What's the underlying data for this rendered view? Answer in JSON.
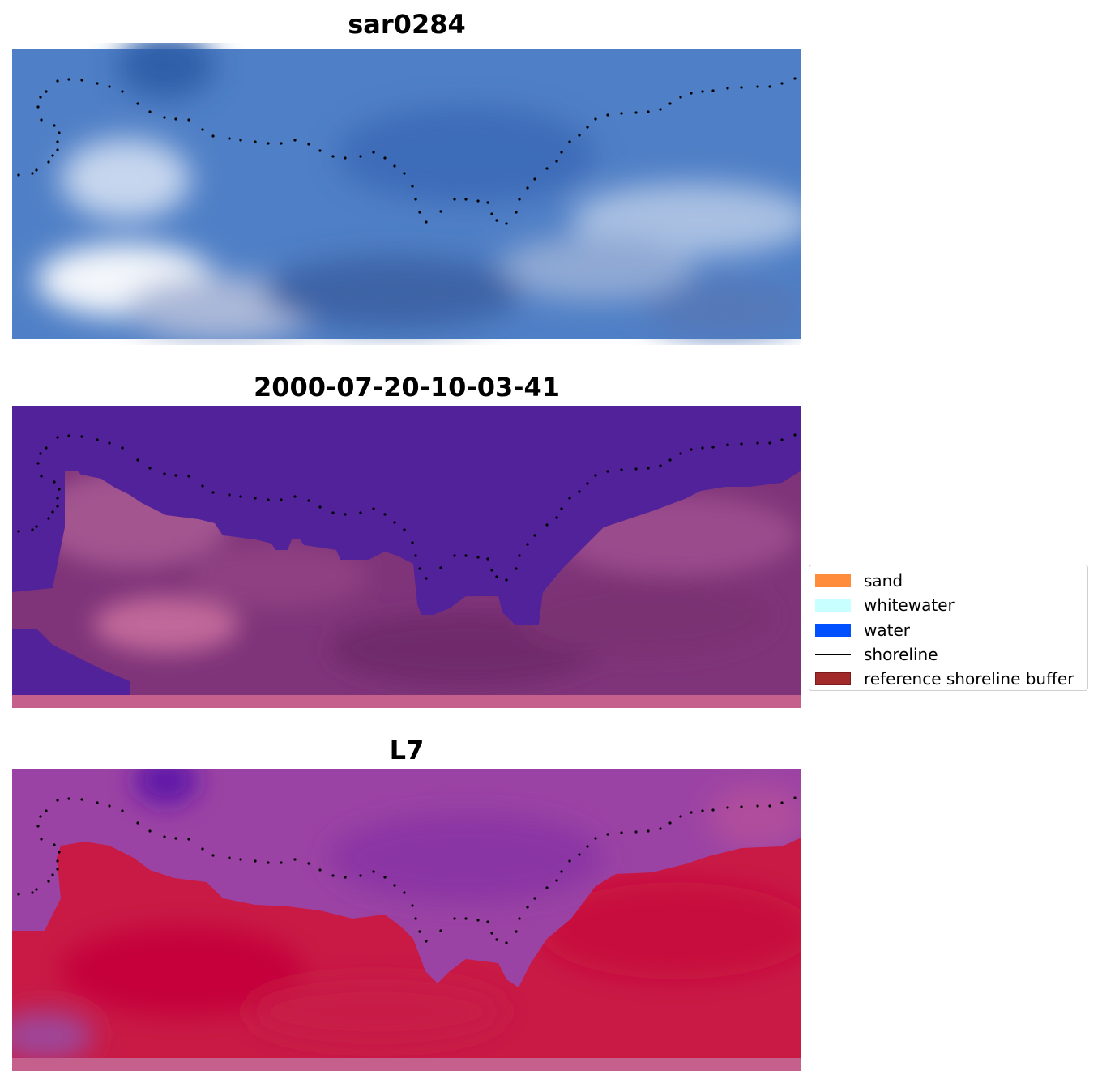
{
  "panels": [
    {
      "title": "sar0284",
      "render": "rgb"
    },
    {
      "title": "2000-07-20-10-03-41",
      "render": "classification"
    },
    {
      "title": "L7",
      "render": "index"
    }
  ],
  "legend": {
    "items": [
      {
        "label": "sand",
        "kind": "patch",
        "color": "#ff8c3a"
      },
      {
        "label": "whitewater",
        "kind": "patch",
        "color": "#c8ffff"
      },
      {
        "label": "water",
        "kind": "patch",
        "color": "#0050ff"
      },
      {
        "label": "shoreline",
        "kind": "line",
        "color": "#000000"
      },
      {
        "label": "reference shoreline buffer",
        "kind": "patch",
        "color": "#a32a2a"
      }
    ]
  },
  "colors": {
    "water_class": "#52229a",
    "land_class": "#9a4f90",
    "index_water": "#9b44a6",
    "index_land": "#c8173f",
    "rgb_sky": "#4f7fc8"
  }
}
